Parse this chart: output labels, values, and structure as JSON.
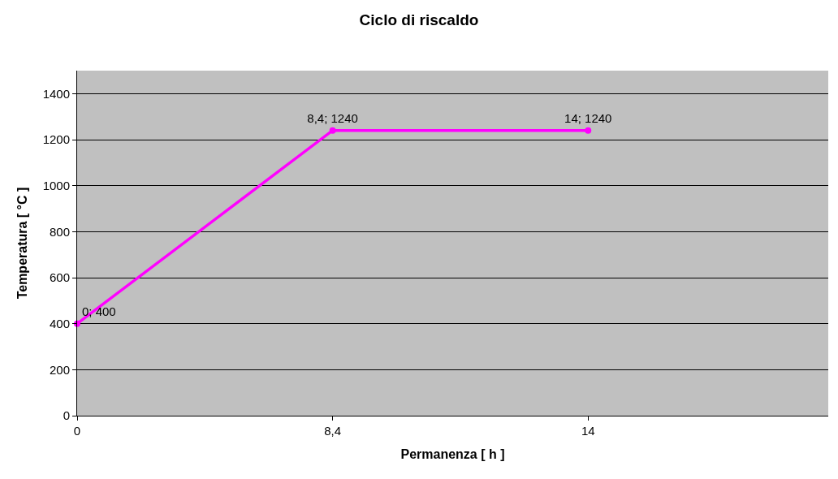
{
  "chart_data": {
    "type": "line",
    "title": "Ciclo di riscaldo",
    "xlabel": "Permanenza [ h ]",
    "ylabel": "Temperatura [ °C ]",
    "categories": [
      "0",
      "8,4",
      "14"
    ],
    "series": [
      {
        "color": "#ff00ff",
        "values": [
          400,
          1240,
          1240
        ],
        "value_labels": [
          "0; 400",
          "8,4; 1240",
          "14; 1240"
        ]
      }
    ],
    "ylim": [
      0,
      1500
    ],
    "yticks": [
      0,
      200,
      400,
      600,
      800,
      1000,
      1200,
      1400
    ],
    "grid": "y",
    "marker": "circle",
    "line_style": "solid"
  }
}
